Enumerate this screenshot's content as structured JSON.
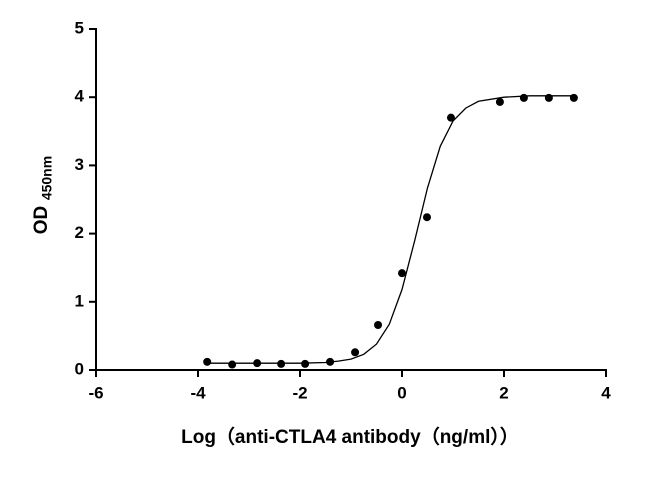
{
  "chart_data": {
    "type": "scatter",
    "xlabel": "Log（anti-CTLA4 antibody（ng/ml））",
    "ylabel": "OD",
    "ylabel_subscript": "450nm",
    "xlim": [
      -6,
      4
    ],
    "xticks": [
      -6,
      -4,
      -2,
      0,
      2,
      4
    ],
    "ylim": [
      0,
      5
    ],
    "yticks": [
      0,
      1,
      2,
      3,
      4,
      5
    ],
    "grid": false,
    "series": [
      {
        "type": "scatter",
        "color": "#000000",
        "x": [
          -3.82,
          -3.33,
          -2.84,
          -2.37,
          -1.9,
          -1.41,
          -0.92,
          -0.47,
          0.0,
          0.49,
          0.96,
          1.92,
          2.39,
          2.88,
          3.37
        ],
        "values": [
          0.12,
          0.08,
          0.1,
          0.09,
          0.09,
          0.12,
          0.26,
          0.66,
          1.42,
          2.24,
          3.7,
          3.93,
          3.99,
          3.99,
          3.99
        ]
      },
      {
        "type": "line",
        "color": "#000000",
        "x": [
          -3.82,
          -2,
          -1.5,
          -1.25,
          -1,
          -0.75,
          -0.5,
          -0.25,
          0,
          0.25,
          0.5,
          0.75,
          1,
          1.25,
          1.5,
          2,
          2.5,
          3.37
        ],
        "values": [
          0.1,
          0.1,
          0.11,
          0.13,
          0.16,
          0.23,
          0.38,
          0.67,
          1.18,
          1.9,
          2.67,
          3.28,
          3.65,
          3.84,
          3.94,
          4.0,
          4.02,
          4.02
        ]
      }
    ]
  }
}
